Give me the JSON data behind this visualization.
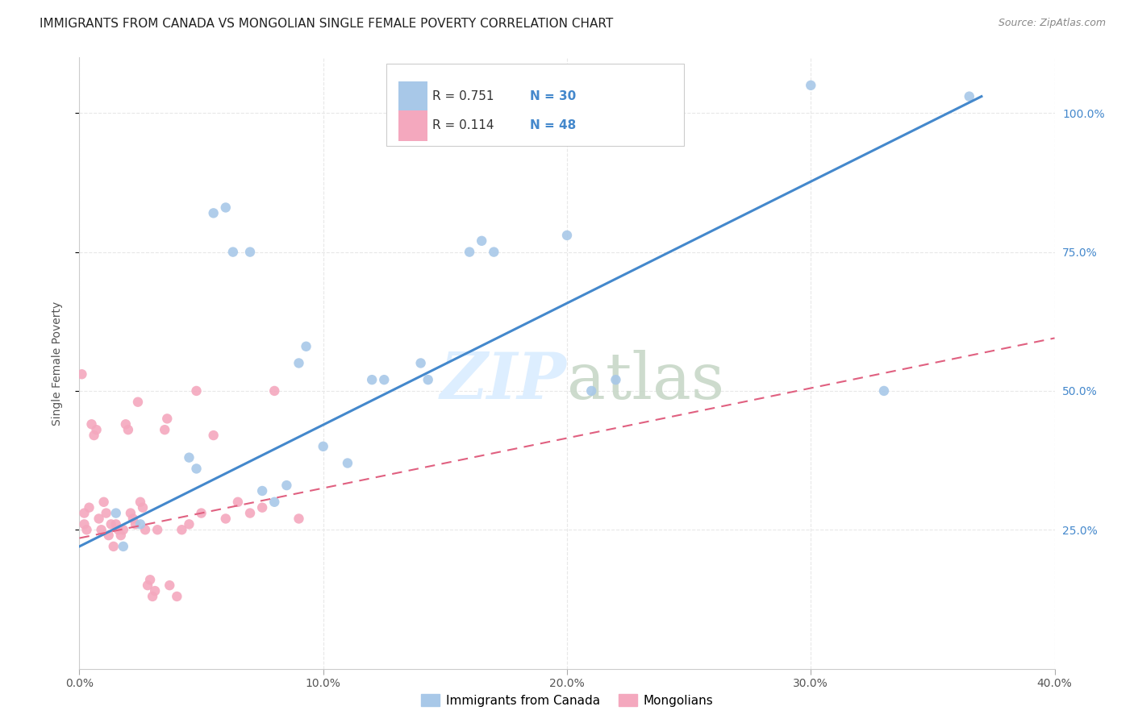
{
  "title": "IMMIGRANTS FROM CANADA VS MONGOLIAN SINGLE FEMALE POVERTY CORRELATION CHART",
  "source": "Source: ZipAtlas.com",
  "ylabel": "Single Female Poverty",
  "x_tick_labels": [
    "0.0%",
    "10.0%",
    "20.0%",
    "30.0%",
    "40.0%"
  ],
  "y_tick_labels_right": [
    "25.0%",
    "50.0%",
    "75.0%",
    "100.0%"
  ],
  "x_tick_vals": [
    0.0,
    0.1,
    0.2,
    0.3,
    0.4
  ],
  "y_tick_vals": [
    0.25,
    0.5,
    0.75,
    1.0
  ],
  "xlim": [
    0.0,
    0.4
  ],
  "ylim": [
    0.0,
    1.1
  ],
  "legend_label_blue": "Immigrants from Canada",
  "legend_label_pink": "Mongolians",
  "legend_r_blue": "R = 0.751",
  "legend_n_blue": "N = 30",
  "legend_r_pink": "R = 0.114",
  "legend_n_pink": "N = 48",
  "blue_color": "#a8c8e8",
  "pink_color": "#f4a8be",
  "trend_blue_color": "#4488cc",
  "trend_pink_color": "#e06080",
  "watermark_color": "#ddeeff",
  "blue_points_x": [
    0.015,
    0.018,
    0.025,
    0.045,
    0.048,
    0.055,
    0.06,
    0.063,
    0.07,
    0.075,
    0.08,
    0.085,
    0.09,
    0.093,
    0.1,
    0.11,
    0.12,
    0.125,
    0.14,
    0.143,
    0.16,
    0.165,
    0.17,
    0.2,
    0.21,
    0.22,
    0.23,
    0.3,
    0.33,
    0.365
  ],
  "blue_points_y": [
    0.28,
    0.22,
    0.26,
    0.38,
    0.36,
    0.82,
    0.83,
    0.75,
    0.75,
    0.32,
    0.3,
    0.33,
    0.55,
    0.58,
    0.4,
    0.37,
    0.52,
    0.52,
    0.55,
    0.52,
    0.75,
    0.77,
    0.75,
    0.78,
    0.5,
    0.52,
    1.05,
    1.05,
    0.5,
    1.03
  ],
  "pink_points_x": [
    0.001,
    0.002,
    0.002,
    0.003,
    0.004,
    0.005,
    0.006,
    0.007,
    0.008,
    0.009,
    0.01,
    0.011,
    0.012,
    0.013,
    0.014,
    0.015,
    0.016,
    0.017,
    0.018,
    0.019,
    0.02,
    0.021,
    0.022,
    0.023,
    0.024,
    0.025,
    0.026,
    0.027,
    0.028,
    0.029,
    0.03,
    0.031,
    0.032,
    0.035,
    0.036,
    0.037,
    0.04,
    0.042,
    0.045,
    0.048,
    0.05,
    0.055,
    0.06,
    0.065,
    0.07,
    0.075,
    0.08,
    0.09
  ],
  "pink_points_y": [
    0.53,
    0.28,
    0.26,
    0.25,
    0.29,
    0.44,
    0.42,
    0.43,
    0.27,
    0.25,
    0.3,
    0.28,
    0.24,
    0.26,
    0.22,
    0.26,
    0.25,
    0.24,
    0.25,
    0.44,
    0.43,
    0.28,
    0.27,
    0.26,
    0.48,
    0.3,
    0.29,
    0.25,
    0.15,
    0.16,
    0.13,
    0.14,
    0.25,
    0.43,
    0.45,
    0.15,
    0.13,
    0.25,
    0.26,
    0.5,
    0.28,
    0.42,
    0.27,
    0.3,
    0.28,
    0.29,
    0.5,
    0.27
  ],
  "blue_trendline_x": [
    0.0,
    0.37
  ],
  "blue_trendline_y": [
    0.22,
    1.03
  ],
  "pink_trendline_x": [
    0.0,
    0.4
  ],
  "pink_trendline_y": [
    0.235,
    0.595
  ],
  "background_color": "#ffffff",
  "grid_color": "#e8e8e8",
  "title_fontsize": 11,
  "axis_label_fontsize": 10,
  "tick_fontsize": 10,
  "legend_fontsize": 11
}
